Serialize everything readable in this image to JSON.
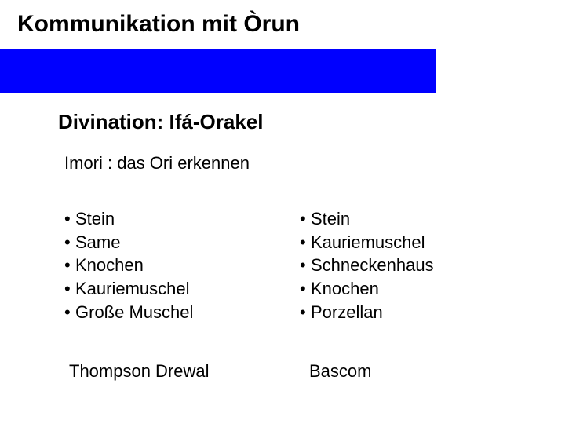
{
  "title": "Kommunikation mit Òrun",
  "subtitle": "Divination: Ifá-Orakel",
  "subheading": "Imori : das Ori erkennen",
  "left": {
    "items": [
      "Stein",
      "Same",
      "Knochen",
      "Kauriemuschel",
      "Große Muschel"
    ],
    "source": "Thompson Drewal"
  },
  "right": {
    "items": [
      "Stein",
      "Kauriemuschel",
      "Schneckenhaus",
      "Knochen",
      "Porzellan"
    ],
    "source": "Bascom"
  },
  "colors": {
    "bar": "#0000ff",
    "background": "#ffffff",
    "text": "#000000"
  }
}
